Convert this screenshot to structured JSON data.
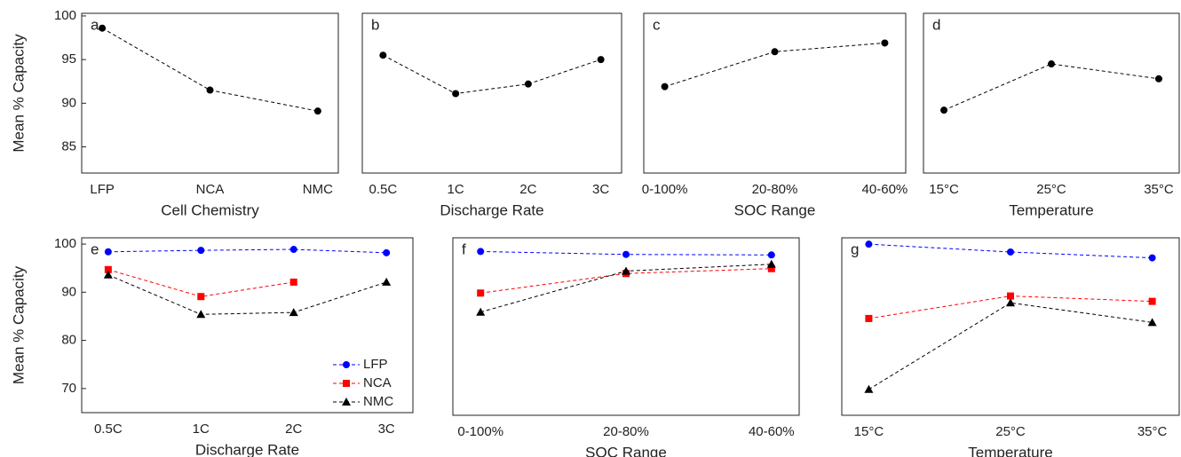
{
  "chart_data": [
    {
      "type": "line",
      "annotation": "a",
      "xlabel": "Cell Chemistry",
      "ylabel": "Mean % Capacity",
      "categories": [
        "LFP",
        "NCA",
        "NMC"
      ],
      "values": [
        98.6,
        91.5,
        89.1
      ],
      "color": "#000000",
      "marker": "circle",
      "line_style": "dashed",
      "ylim": [
        82,
        100.3
      ],
      "yticks": [
        85,
        90,
        95,
        100
      ]
    },
    {
      "type": "line",
      "annotation": "b",
      "xlabel": "Discharge Rate",
      "categories": [
        "0.5C",
        "1C",
        "2C",
        "3C"
      ],
      "values": [
        95.5,
        91.1,
        92.2,
        95.0
      ],
      "color": "#000000",
      "marker": "circle",
      "line_style": "dashed",
      "ylim": [
        82,
        100.3
      ]
    },
    {
      "type": "line",
      "annotation": "c",
      "xlabel": "SOC Range",
      "categories": [
        "0-100%",
        "20-80%",
        "40-60%"
      ],
      "values": [
        91.9,
        95.9,
        96.9
      ],
      "color": "#000000",
      "marker": "circle",
      "line_style": "dashed",
      "ylim": [
        82,
        100.3
      ]
    },
    {
      "type": "line",
      "annotation": "d",
      "xlabel": "Temperature",
      "categories": [
        "15°C",
        "25°C",
        "35°C"
      ],
      "values": [
        89.2,
        94.5,
        92.8
      ],
      "color": "#000000",
      "marker": "circle",
      "line_style": "dashed",
      "ylim": [
        82,
        100.3
      ]
    },
    {
      "type": "line",
      "annotation": "e",
      "xlabel": "Discharge Rate",
      "ylabel": "Mean % Capacity",
      "categories": [
        "0.5C",
        "1C",
        "2C",
        "3C"
      ],
      "series": [
        {
          "name": "LFP",
          "color": "#0000ff",
          "marker": "circle",
          "values": [
            98.4,
            98.7,
            98.9,
            98.2
          ]
        },
        {
          "name": "NCA",
          "color": "#ff0000",
          "marker": "square",
          "values": [
            94.7,
            89.1,
            92.1,
            null
          ]
        },
        {
          "name": "NMC",
          "color": "#000000",
          "marker": "triangle",
          "values": [
            93.6,
            85.4,
            85.8,
            92.1
          ]
        }
      ],
      "line_style": "dashed",
      "legend": "lower right",
      "ylim": [
        65,
        101.3
      ],
      "yticks": [
        70,
        80,
        90,
        100
      ]
    },
    {
      "type": "line",
      "annotation": "f",
      "xlabel": "SOC Range",
      "categories": [
        "0-100%",
        "20-80%",
        "40-60%"
      ],
      "series": [
        {
          "color": "#0000ff",
          "marker": "circle",
          "values": [
            98.5,
            97.9,
            97.8
          ]
        },
        {
          "color": "#ff0000",
          "marker": "square",
          "values": [
            90.0,
            94.0,
            95.0
          ]
        },
        {
          "color": "#000000",
          "marker": "triangle",
          "values": [
            86.1,
            94.5,
            95.9
          ]
        }
      ],
      "line_style": "dashed",
      "ylim": [
        65,
        101.3
      ]
    },
    {
      "type": "line",
      "annotation": "g",
      "xlabel": "Temperature",
      "categories": [
        "15°C",
        "25°C",
        "35°C"
      ],
      "series": [
        {
          "color": "#0000ff",
          "marker": "circle",
          "values": [
            100.0,
            98.4,
            97.2
          ]
        },
        {
          "color": "#ff0000",
          "marker": "square",
          "values": [
            84.8,
            89.4,
            88.3
          ]
        },
        {
          "color": "#000000",
          "marker": "triangle",
          "values": [
            70.3,
            88.0,
            84.0
          ]
        }
      ],
      "line_style": "dashed",
      "ylim": [
        65,
        101.3
      ]
    }
  ]
}
